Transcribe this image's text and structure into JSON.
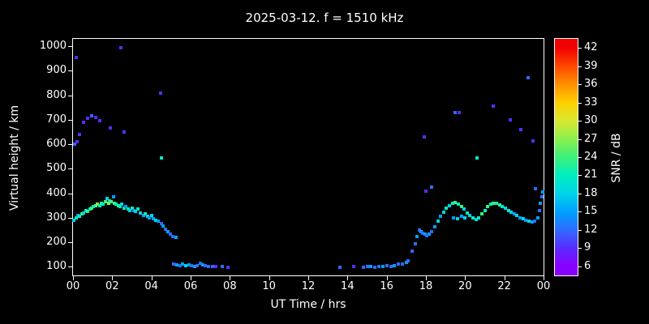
{
  "title": "2025-03-12. f = 1510 kHz",
  "axes": {
    "xlabel": "UT Time / hrs",
    "ylabel": "Virtual height / km",
    "x_range": [
      0,
      24
    ],
    "x_tick_step_hours": 2,
    "x_tick_labels": [
      "00",
      "02",
      "04",
      "06",
      "08",
      "10",
      "12",
      "14",
      "16",
      "18",
      "20",
      "22",
      "00"
    ],
    "y_range": [
      65,
      1030
    ],
    "y_tick_labels": [
      100,
      200,
      300,
      400,
      500,
      600,
      700,
      800,
      900,
      1000
    ]
  },
  "colorbar": {
    "label": "SNR / dB",
    "ticks": [
      6,
      9,
      12,
      15,
      18,
      21,
      24,
      27,
      30,
      33,
      36,
      39,
      42
    ],
    "range": [
      4.5,
      43.5
    ],
    "stops": [
      {
        "v": 6,
        "c": "#8a00ff"
      },
      {
        "v": 9,
        "c": "#5a2bff"
      },
      {
        "v": 12,
        "c": "#2f6bff"
      },
      {
        "v": 15,
        "c": "#00a0ff"
      },
      {
        "v": 18,
        "c": "#00d4e8"
      },
      {
        "v": 21,
        "c": "#00eec0"
      },
      {
        "v": 24,
        "c": "#3cf07a"
      },
      {
        "v": 27,
        "c": "#8cf04c"
      },
      {
        "v": 30,
        "c": "#d8e830"
      },
      {
        "v": 33,
        "c": "#ffd000"
      },
      {
        "v": 36,
        "c": "#ff9000"
      },
      {
        "v": 39,
        "c": "#ff4800"
      },
      {
        "v": 42,
        "c": "#f00000"
      }
    ]
  },
  "chart_data": {
    "type": "scatter",
    "title": "2025-03-12. f = 1510 kHz",
    "xlabel": "UT Time / hrs",
    "ylabel": "Virtual height / km",
    "color_axis_label": "SNR / dB",
    "x_range": [
      0,
      24
    ],
    "y_range_km": [
      100,
      1000
    ],
    "snr_range_db": [
      6,
      42
    ],
    "point_format": [
      "time_ut_hours",
      "virtual_height_km",
      "snr_db"
    ],
    "points": [
      [
        0.05,
        290,
        18
      ],
      [
        0.15,
        300,
        21
      ],
      [
        0.25,
        310,
        15
      ],
      [
        0.35,
        305,
        21
      ],
      [
        0.45,
        315,
        24
      ],
      [
        0.55,
        320,
        18
      ],
      [
        0.65,
        330,
        21
      ],
      [
        0.75,
        325,
        24
      ],
      [
        0.85,
        335,
        21
      ],
      [
        0.95,
        340,
        24
      ],
      [
        1.05,
        345,
        21
      ],
      [
        1.15,
        350,
        24
      ],
      [
        1.25,
        355,
        27
      ],
      [
        1.35,
        350,
        21
      ],
      [
        1.45,
        360,
        24
      ],
      [
        1.55,
        355,
        21
      ],
      [
        1.65,
        365,
        24
      ],
      [
        1.75,
        380,
        18
      ],
      [
        1.8,
        360,
        27
      ],
      [
        1.85,
        370,
        21
      ],
      [
        1.95,
        365,
        24
      ],
      [
        2.05,
        385,
        15
      ],
      [
        2.1,
        360,
        24
      ],
      [
        2.2,
        355,
        21
      ],
      [
        2.3,
        350,
        24
      ],
      [
        2.4,
        345,
        21
      ],
      [
        2.5,
        355,
        18
      ],
      [
        2.6,
        340,
        21
      ],
      [
        2.7,
        345,
        15
      ],
      [
        2.8,
        335,
        21
      ],
      [
        2.9,
        330,
        18
      ],
      [
        3.0,
        340,
        21
      ],
      [
        3.1,
        330,
        15
      ],
      [
        3.2,
        325,
        18
      ],
      [
        3.3,
        335,
        21
      ],
      [
        3.45,
        320,
        18
      ],
      [
        3.6,
        310,
        15
      ],
      [
        3.7,
        315,
        21
      ],
      [
        3.8,
        305,
        18
      ],
      [
        3.9,
        300,
        15
      ],
      [
        4.0,
        310,
        18
      ],
      [
        4.1,
        295,
        15
      ],
      [
        4.2,
        290,
        18
      ],
      [
        4.35,
        285,
        15
      ],
      [
        4.5,
        275,
        12
      ],
      [
        4.6,
        265,
        15
      ],
      [
        4.7,
        255,
        12
      ],
      [
        4.85,
        245,
        15
      ],
      [
        4.95,
        235,
        12
      ],
      [
        5.1,
        225,
        12
      ],
      [
        5.25,
        220,
        15
      ],
      [
        0.15,
        955,
        9
      ],
      [
        0.1,
        600,
        12
      ],
      [
        0.2,
        610,
        9
      ],
      [
        0.35,
        640,
        9
      ],
      [
        0.55,
        690,
        9
      ],
      [
        0.75,
        705,
        9
      ],
      [
        0.95,
        715,
        12
      ],
      [
        1.15,
        710,
        9
      ],
      [
        1.35,
        695,
        9
      ],
      [
        1.9,
        665,
        9
      ],
      [
        2.45,
        995,
        9
      ],
      [
        2.6,
        650,
        9
      ],
      [
        4.45,
        810,
        9
      ],
      [
        4.5,
        545,
        21
      ],
      [
        5.15,
        110,
        12
      ],
      [
        5.3,
        108,
        15
      ],
      [
        5.45,
        105,
        12
      ],
      [
        5.6,
        110,
        15
      ],
      [
        5.75,
        105,
        18
      ],
      [
        5.9,
        108,
        15
      ],
      [
        6.05,
        105,
        12
      ],
      [
        6.2,
        102,
        15
      ],
      [
        6.35,
        105,
        12
      ],
      [
        6.5,
        115,
        12
      ],
      [
        6.6,
        108,
        15
      ],
      [
        6.75,
        105,
        12
      ],
      [
        6.9,
        102,
        12
      ],
      [
        7.1,
        100,
        12
      ],
      [
        7.3,
        100,
        9
      ],
      [
        7.6,
        100,
        12
      ],
      [
        7.9,
        98,
        9
      ],
      [
        13.6,
        98,
        12
      ],
      [
        14.3,
        100,
        9
      ],
      [
        14.8,
        98,
        12
      ],
      [
        15.0,
        102,
        12
      ],
      [
        15.2,
        100,
        15
      ],
      [
        15.4,
        98,
        12
      ],
      [
        15.6,
        102,
        12
      ],
      [
        15.8,
        100,
        15
      ],
      [
        16.0,
        104,
        12
      ],
      [
        16.2,
        100,
        12
      ],
      [
        16.4,
        106,
        15
      ],
      [
        16.6,
        110,
        12
      ],
      [
        16.8,
        112,
        12
      ],
      [
        17.0,
        118,
        15
      ],
      [
        17.1,
        125,
        12
      ],
      [
        17.3,
        165,
        12
      ],
      [
        17.45,
        195,
        12
      ],
      [
        17.55,
        225,
        15
      ],
      [
        17.65,
        250,
        12
      ],
      [
        17.75,
        245,
        15
      ],
      [
        17.85,
        238,
        12
      ],
      [
        17.95,
        232,
        15
      ],
      [
        18.05,
        228,
        12
      ],
      [
        18.15,
        232,
        15
      ],
      [
        18.3,
        245,
        12
      ],
      [
        18.45,
        262,
        15
      ],
      [
        18.6,
        285,
        18
      ],
      [
        18.75,
        305,
        15
      ],
      [
        18.9,
        322,
        18
      ],
      [
        19.05,
        338,
        21
      ],
      [
        19.2,
        350,
        18
      ],
      [
        19.35,
        358,
        21
      ],
      [
        19.5,
        362,
        24
      ],
      [
        19.65,
        355,
        21
      ],
      [
        19.8,
        345,
        24
      ],
      [
        19.95,
        335,
        18
      ],
      [
        19.4,
        300,
        15
      ],
      [
        19.6,
        295,
        18
      ],
      [
        19.8,
        305,
        15
      ],
      [
        20.0,
        298,
        18
      ],
      [
        20.1,
        320,
        21
      ],
      [
        20.25,
        308,
        18
      ],
      [
        20.4,
        298,
        21
      ],
      [
        20.55,
        292,
        18
      ],
      [
        20.7,
        300,
        21
      ],
      [
        20.85,
        315,
        24
      ],
      [
        21.0,
        330,
        21
      ],
      [
        21.15,
        345,
        24
      ],
      [
        21.3,
        355,
        21
      ],
      [
        21.45,
        360,
        24
      ],
      [
        21.6,
        358,
        21
      ],
      [
        21.75,
        352,
        24
      ],
      [
        21.9,
        345,
        21
      ],
      [
        22.05,
        338,
        18
      ],
      [
        22.2,
        330,
        21
      ],
      [
        22.35,
        322,
        18
      ],
      [
        22.5,
        315,
        15
      ],
      [
        22.65,
        308,
        18
      ],
      [
        22.8,
        300,
        15
      ],
      [
        22.95,
        295,
        18
      ],
      [
        23.1,
        290,
        15
      ],
      [
        23.25,
        285,
        18
      ],
      [
        23.4,
        282,
        15
      ],
      [
        23.55,
        288,
        12
      ],
      [
        23.7,
        300,
        15
      ],
      [
        23.8,
        330,
        12
      ],
      [
        23.85,
        360,
        15
      ],
      [
        23.9,
        385,
        12
      ],
      [
        23.95,
        405,
        15
      ],
      [
        17.9,
        630,
        9
      ],
      [
        18.0,
        408,
        9
      ],
      [
        18.3,
        425,
        12
      ],
      [
        19.5,
        730,
        12
      ],
      [
        19.7,
        728,
        9
      ],
      [
        20.6,
        545,
        21
      ],
      [
        21.45,
        755,
        9
      ],
      [
        22.3,
        700,
        9
      ],
      [
        22.85,
        660,
        9
      ],
      [
        23.2,
        870,
        12
      ],
      [
        23.45,
        612,
        9
      ],
      [
        23.6,
        418,
        12
      ]
    ]
  }
}
